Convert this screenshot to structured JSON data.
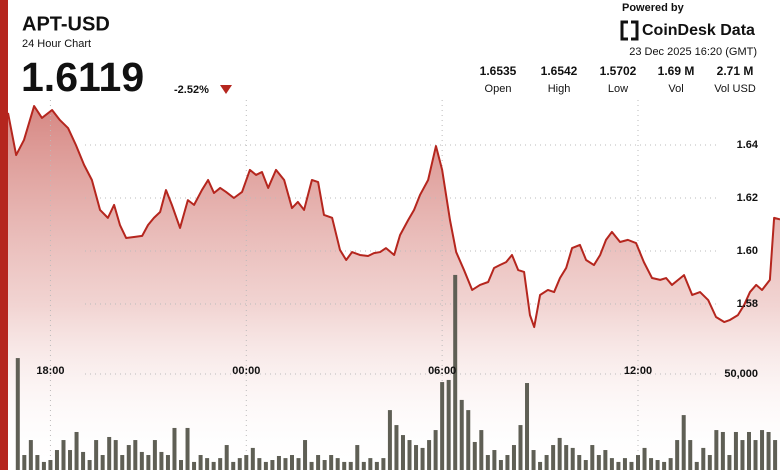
{
  "header": {
    "symbol": "APT-USD",
    "subtitle": "24 Hour Chart",
    "price": 1.6119,
    "change": -2.52,
    "change_label": "-2.52%",
    "powered_by": "Powered by",
    "brand": "CoinDesk Data",
    "timestamp": "23 Dec 2025 16:20 (GMT)",
    "stats": [
      {
        "name": "Open",
        "value": 1.6535
      },
      {
        "name": "High",
        "value": 1.6542
      },
      {
        "name": "Low",
        "value": 1.5702
      },
      {
        "name": "Vol",
        "value": 1690000,
        "value_label": "1.69 M"
      },
      {
        "name": "Vol USD",
        "value": 2710000,
        "value_label": "2.71 M"
      }
    ]
  },
  "chart_data": [
    {
      "type": "area",
      "color": "#b5261e",
      "grid": true,
      "xlim": [
        16.7,
        40.35
      ],
      "ylim": [
        1.52,
        1.66
      ],
      "xticks": [
        {
          "value": 18,
          "label": "18:00"
        },
        {
          "value": 24,
          "label": "00:00"
        },
        {
          "value": 30,
          "label": "06:00"
        },
        {
          "value": 36,
          "label": "12:00"
        }
      ],
      "yticks": [
        1.64,
        1.62,
        {
          "value": 1.6,
          "label": "1.60"
        },
        1.58
      ],
      "x": [
        16.7,
        16.95,
        17.19,
        17.5,
        17.74,
        18.05,
        18.29,
        18.54,
        18.78,
        19.03,
        19.27,
        19.52,
        19.76,
        19.95,
        20.13,
        20.32,
        20.56,
        20.81,
        20.99,
        21.17,
        21.36,
        21.54,
        21.72,
        21.97,
        22.21,
        22.4,
        22.64,
        22.83,
        23.01,
        23.2,
        23.38,
        23.62,
        23.87,
        24.11,
        24.3,
        24.48,
        24.67,
        24.91,
        25.16,
        25.4,
        25.58,
        25.77,
        26.01,
        26.2,
        26.38,
        26.63,
        26.87,
        27.06,
        27.24,
        27.48,
        27.73,
        27.91,
        28.1,
        28.28,
        28.53,
        28.71,
        28.96,
        29.14,
        29.32,
        29.57,
        29.81,
        30.0,
        30.24,
        30.43,
        30.67,
        30.92,
        31.16,
        31.41,
        31.59,
        31.77,
        31.96,
        32.14,
        32.33,
        32.51,
        32.69,
        32.82,
        33.0,
        33.24,
        33.43,
        33.61,
        33.8,
        33.98,
        34.22,
        34.41,
        34.65,
        34.84,
        35.02,
        35.2,
        35.45,
        35.69,
        35.94,
        36.18,
        36.43,
        36.68,
        36.86,
        37.04,
        37.23,
        37.41,
        37.66,
        37.9,
        38.15,
        38.39,
        38.64,
        38.82,
        39.06,
        39.25,
        39.43,
        39.62,
        39.8,
        40.04,
        40.17,
        40.35
      ],
      "values": [
        1.6521,
        1.6362,
        1.6419,
        1.6547,
        1.6502,
        1.6532,
        1.6494,
        1.6464,
        1.64,
        1.6325,
        1.6268,
        1.6155,
        1.6125,
        1.6174,
        1.6098,
        1.6049,
        1.6053,
        1.6057,
        1.6098,
        1.6125,
        1.6147,
        1.623,
        1.6174,
        1.6087,
        1.6192,
        1.6174,
        1.623,
        1.6268,
        1.6219,
        1.6238,
        1.6223,
        1.62,
        1.6223,
        1.6306,
        1.6287,
        1.6298,
        1.6238,
        1.6306,
        1.6268,
        1.6162,
        1.6185,
        1.6155,
        1.6268,
        1.626,
        1.6136,
        1.6125,
        1.6004,
        1.5966,
        1.5996,
        1.5985,
        1.5981,
        1.5992,
        1.5996,
        1.6011,
        1.5985,
        1.606,
        1.6117,
        1.6155,
        1.6211,
        1.6268,
        1.6396,
        1.6306,
        1.6117,
        1.5996,
        1.5928,
        1.5853,
        1.5872,
        1.5883,
        1.5936,
        1.5947,
        1.5958,
        1.5985,
        1.5928,
        1.5921,
        1.5758,
        1.5713,
        1.5834,
        1.5853,
        1.5845,
        1.5898,
        1.5936,
        1.6011,
        1.6023,
        1.5966,
        1.5947,
        1.5985,
        1.6042,
        1.6072,
        1.6034,
        1.6042,
        1.603,
        1.5958,
        1.5898,
        1.5891,
        1.5898,
        1.5872,
        1.5891,
        1.5909,
        1.5834,
        1.5845,
        1.5815,
        1.5751,
        1.5732,
        1.574,
        1.5758,
        1.5796,
        1.5845,
        1.5872,
        1.5853,
        1.5891,
        1.6125,
        1.6119
      ]
    },
    {
      "type": "bar",
      "color": "#5f5f55",
      "grid": true,
      "xlim": [
        16.7,
        40.35
      ],
      "ylim": [
        0,
        110000
      ],
      "yticks": [
        {
          "value": 50000,
          "label": "50,000"
        }
      ],
      "x": [
        17,
        17.2,
        17.4,
        17.6,
        17.8,
        18,
        18.2,
        18.4,
        18.6,
        18.8,
        19,
        19.2,
        19.4,
        19.6,
        19.8,
        20,
        20.2,
        20.4,
        20.6,
        20.8,
        21,
        21.2,
        21.4,
        21.6,
        21.8,
        22,
        22.2,
        22.4,
        22.6,
        22.8,
        23,
        23.2,
        23.4,
        23.6,
        23.8,
        24,
        24.2,
        24.4,
        24.6,
        24.8,
        25,
        25.2,
        25.4,
        25.6,
        25.8,
        26,
        26.2,
        26.4,
        26.6,
        26.8,
        27,
        27.2,
        27.4,
        27.6,
        27.8,
        28,
        28.2,
        28.4,
        28.6,
        28.8,
        29,
        29.2,
        29.4,
        29.6,
        29.8,
        30,
        30.2,
        30.4,
        30.6,
        30.8,
        31,
        31.2,
        31.4,
        31.6,
        31.8,
        32,
        32.2,
        32.4,
        32.6,
        32.8,
        33,
        33.2,
        33.4,
        33.6,
        33.8,
        34,
        34.2,
        34.4,
        34.6,
        34.8,
        35,
        35.2,
        35.4,
        35.6,
        35.8,
        36,
        36.2,
        36.4,
        36.6,
        36.8,
        37,
        37.2,
        37.4,
        37.6,
        37.8,
        38,
        38.2,
        38.4,
        38.6,
        38.8,
        39,
        39.2,
        39.4,
        39.6,
        39.8,
        40,
        40.2
      ],
      "values": [
        58300,
        7800,
        15600,
        7800,
        4200,
        5200,
        10400,
        15600,
        10400,
        19800,
        9400,
        5200,
        15600,
        7800,
        17200,
        15600,
        7800,
        13000,
        15600,
        9400,
        7800,
        15600,
        9400,
        7800,
        21900,
        5200,
        21900,
        4200,
        7800,
        6200,
        4200,
        6200,
        13000,
        4200,
        6200,
        7800,
        11500,
        6200,
        4200,
        5200,
        7300,
        6200,
        7800,
        6200,
        15600,
        4200,
        7800,
        5200,
        7800,
        6200,
        4200,
        4200,
        13000,
        4200,
        6200,
        4200,
        6200,
        31200,
        23400,
        18200,
        15600,
        13000,
        11500,
        15600,
        20800,
        45800,
        46900,
        101600,
        36500,
        31200,
        14600,
        20800,
        7800,
        10400,
        5200,
        7800,
        13000,
        23400,
        45300,
        10400,
        4200,
        7800,
        13000,
        16700,
        13000,
        11500,
        7800,
        5200,
        13000,
        7800,
        10400,
        6200,
        4200,
        6200,
        4200,
        7800,
        11500,
        6200,
        5200,
        4200,
        6200,
        15600,
        28600,
        15600,
        4200,
        11500,
        7800,
        20800,
        19800,
        7800,
        19800,
        15600,
        19800,
        15600,
        20800,
        19800,
        15600
      ]
    }
  ]
}
